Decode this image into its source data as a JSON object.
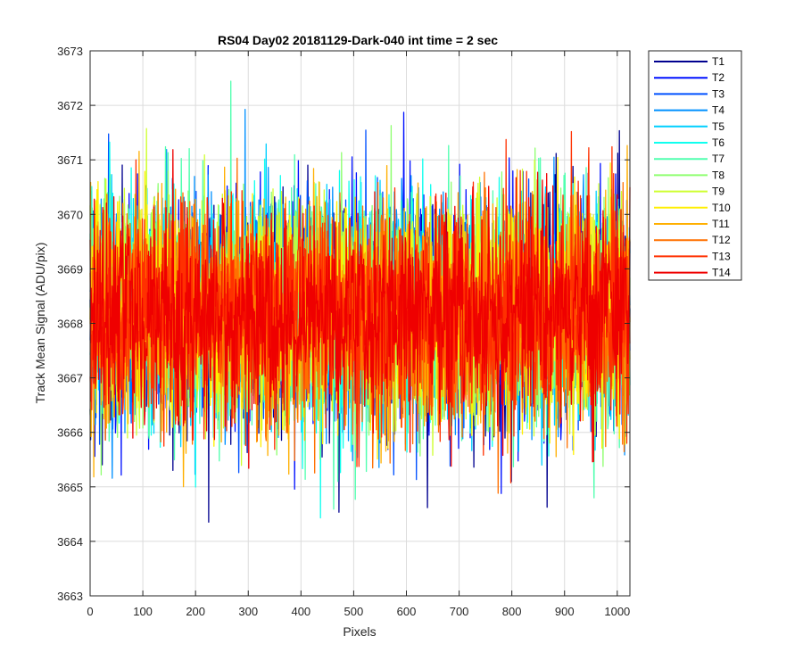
{
  "chart_data": {
    "type": "line",
    "title": "RS04 Day02 20181129-Dark-040 int time = 2 sec",
    "xlabel": "Pixels",
    "ylabel": "Track Mean Signal (ADU/pix)",
    "xlim": [
      0,
      1024
    ],
    "ylim": [
      3663,
      3673
    ],
    "xticks": [
      0,
      100,
      200,
      300,
      400,
      500,
      600,
      700,
      800,
      900,
      1000
    ],
    "yticks": [
      3663,
      3664,
      3665,
      3666,
      3667,
      3668,
      3669,
      3670,
      3671,
      3672,
      3673
    ],
    "grid": true,
    "legend_position": "outside-top-right",
    "series_mean": 3668.2,
    "series_noise_std": 1.0,
    "series": [
      {
        "name": "T1",
        "color": "#00008f"
      },
      {
        "name": "T2",
        "color": "#0010ff"
      },
      {
        "name": "T3",
        "color": "#0050ff"
      },
      {
        "name": "T4",
        "color": "#0090ff"
      },
      {
        "name": "T5",
        "color": "#00cfff"
      },
      {
        "name": "T6",
        "color": "#10ffef"
      },
      {
        "name": "T7",
        "color": "#50ffaf"
      },
      {
        "name": "T8",
        "color": "#8fff70"
      },
      {
        "name": "T9",
        "color": "#cfff30"
      },
      {
        "name": "T10",
        "color": "#ffef00"
      },
      {
        "name": "T11",
        "color": "#ffaf00"
      },
      {
        "name": "T12",
        "color": "#ff7000"
      },
      {
        "name": "T13",
        "color": "#ff3000"
      },
      {
        "name": "T14",
        "color": "#ef0000"
      }
    ]
  }
}
